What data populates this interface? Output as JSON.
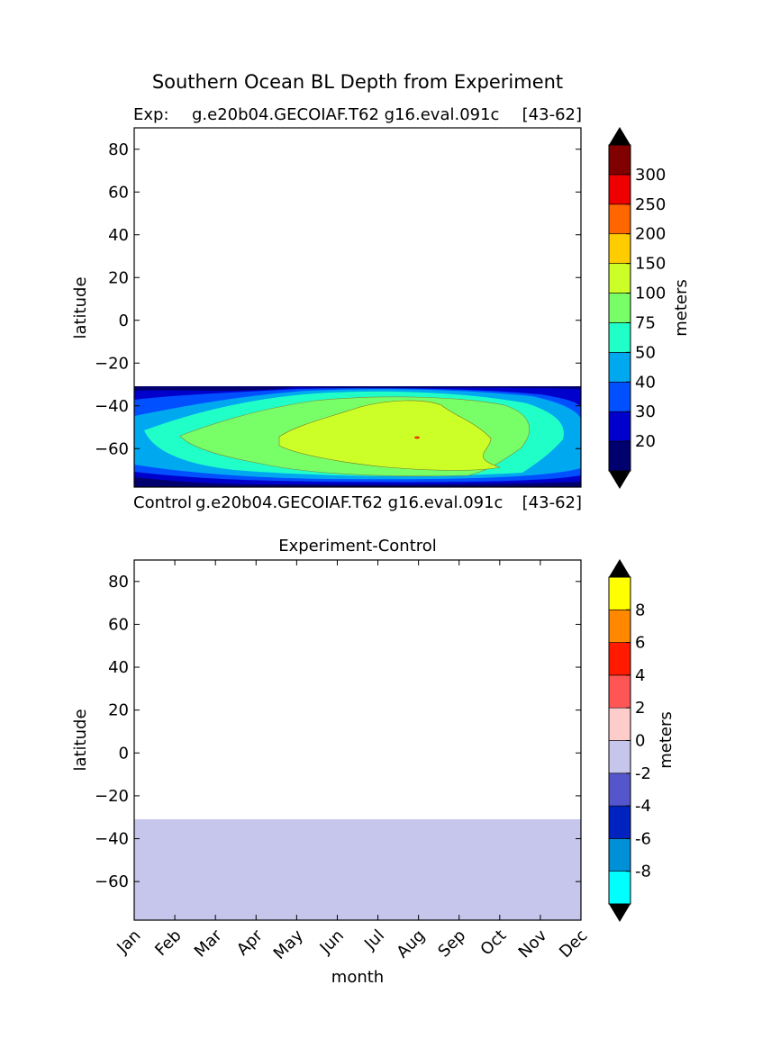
{
  "figure": {
    "title": "Southern Ocean BL Depth from Experiment"
  },
  "top": {
    "exp_label": "Exp:",
    "exp_name": "g.e20b04.GECOIAF.T62 g16.eval.091c",
    "years": "[43-62]",
    "ctrl_label": "Control",
    "ctrl_name": "g.e20b04.GECOIAF.T62 g16.eval.091c",
    "ctrl_years": "[43-62]"
  },
  "bottom": {
    "title": "Experiment-Control"
  },
  "chart_data": [
    {
      "type": "heatmap",
      "name": "experiment",
      "xlabel": "",
      "ylabel": "latitude",
      "xlim": [
        0,
        11
      ],
      "ylim": [
        -78,
        90
      ],
      "yticks": [
        -60,
        -40,
        -20,
        0,
        20,
        40,
        60,
        80
      ],
      "data_lat_range": [
        -78,
        -31
      ],
      "colorbar": {
        "label": "meters",
        "levels": [
          20,
          30,
          40,
          50,
          75,
          100,
          150,
          200,
          250,
          300
        ],
        "tick_labels": [
          "20",
          "30",
          "40",
          "50",
          "75",
          "100",
          "150",
          "200",
          "250",
          "300"
        ],
        "colors": [
          "#00006e",
          "#0000cc",
          "#0050ff",
          "#00a8f0",
          "#20ffc8",
          "#78ff68",
          "#ccff28",
          "#ffcc00",
          "#ff6600",
          "#ee0000",
          "#800000"
        ],
        "extend": "both"
      },
      "contour_bands": [
        {
          "level": 20,
          "color": "#00006e"
        },
        {
          "level": 30,
          "color": "#0000cc"
        },
        {
          "level": 40,
          "color": "#0050ff"
        },
        {
          "level": 50,
          "color": "#00a8f0"
        },
        {
          "level": 75,
          "color": "#20ffc8"
        },
        {
          "level": 100,
          "color": "#78ff68"
        },
        {
          "level": 150,
          "color": "#ccff28"
        }
      ]
    },
    {
      "type": "heatmap",
      "name": "experiment-control",
      "title": "Experiment-Control",
      "xlabel": "month",
      "ylabel": "latitude",
      "categories": [
        "Jan",
        "Feb",
        "Mar",
        "Apr",
        "May",
        "Jun",
        "Jul",
        "Aug",
        "Sep",
        "Oct",
        "Nov",
        "Dec"
      ],
      "ylim": [
        -78,
        90
      ],
      "yticks": [
        -60,
        -40,
        -20,
        0,
        20,
        40,
        60,
        80
      ],
      "data_lat_range": [
        -78,
        -31
      ],
      "uniform_value_range": [
        -2,
        0
      ],
      "colorbar": {
        "label": "meters",
        "levels": [
          -8,
          -6,
          -4,
          -2,
          0,
          2,
          4,
          6,
          8
        ],
        "tick_labels": [
          "-8",
          "-6",
          "-4",
          "-2",
          "0",
          "2",
          "4",
          "6",
          "8"
        ],
        "colors": [
          "#00ffff",
          "#0090d8",
          "#0022c0",
          "#5555cc",
          "#c6c6ec",
          "#ffcccc",
          "#ff5555",
          "#ff1a00",
          "#ff8800",
          "#ffff00"
        ],
        "extend": "both"
      }
    }
  ]
}
